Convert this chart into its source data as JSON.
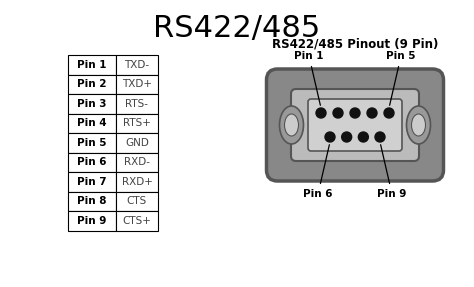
{
  "title": "RS422/485",
  "subtitle": "RS422/485 Pinout (9 Pin)",
  "bg_color": "#ffffff",
  "table_pins": [
    "Pin 1",
    "Pin 2",
    "Pin 3",
    "Pin 4",
    "Pin 5",
    "Pin 6",
    "Pin 7",
    "Pin 8",
    "Pin 9"
  ],
  "table_signals": [
    "TXD-",
    "TXD+",
    "RTS-",
    "RTS+",
    "GND",
    "RXD-",
    "RXD+",
    "CTS",
    "CTS+"
  ],
  "outer_shell_color": "#555555",
  "outer_shell_fill": "#888888",
  "inner_shell_fill": "#bbbbbb",
  "inner_rect_fill": "#d0d0d0",
  "screw_fill": "#999999",
  "screw_inner_fill": "#cccccc",
  "pin_color": "#111111",
  "title_fontsize": 22,
  "subtitle_fontsize": 8.5,
  "table_fontsize": 7.5,
  "label_fontsize": 7.5
}
